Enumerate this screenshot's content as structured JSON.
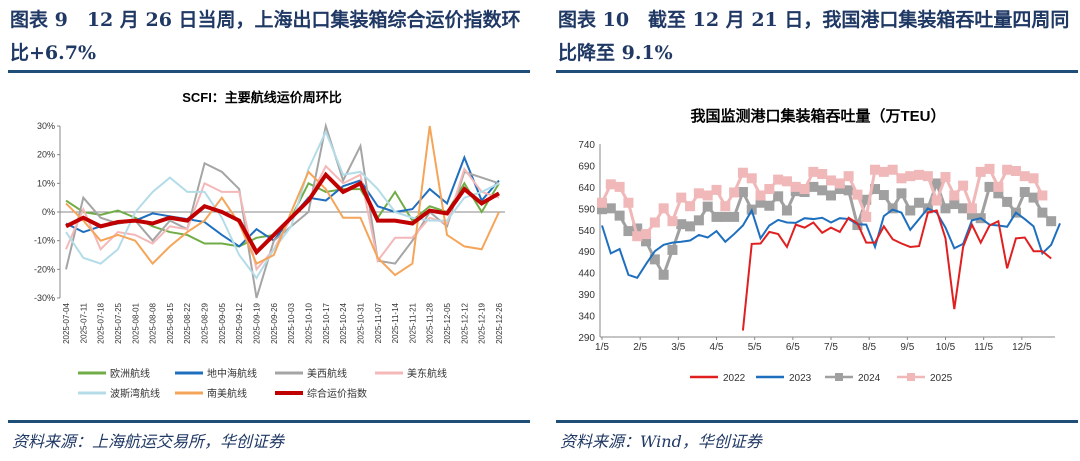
{
  "left": {
    "title": "图表 9　12 月 26 日当周，上海出口集装箱综合运价指数环比+6.7%",
    "source": "资料来源：上海航运交易所，华创证券"
  },
  "right": {
    "title": "图表 10　截至 12 月 21 日，我国港口集装箱吞吐量四周同比降至 9.1%",
    "source": "资料来源：Wind，华创证券"
  },
  "chart_data": [
    {
      "type": "line",
      "title": "SCFI：主要航线运价周环比",
      "ylim": [
        -30,
        30
      ],
      "yticks": [
        "-30%",
        "-20%",
        "-10%",
        "0%",
        "10%",
        "20%",
        "30%"
      ],
      "grid": false,
      "legend": "bottom",
      "categories": [
        "2025-07-04",
        "2025-07-11",
        "2025-07-18",
        "2025-07-25",
        "2025-08-01",
        "2025-08-08",
        "2025-08-15",
        "2025-08-22",
        "2025-08-29",
        "2025-09-05",
        "2025-09-12",
        "2025-09-19",
        "2025-09-26",
        "2025-10-03",
        "2025-10-10",
        "2025-10-17",
        "2025-10-24",
        "2025-10-31",
        "2025-11-07",
        "2025-11-14",
        "2025-11-21",
        "2025-11-28",
        "2025-12-05",
        "2025-12-12",
        "2025-12-19",
        "2025-12-26"
      ],
      "series": [
        {
          "name": "欧洲航线",
          "color": "#70ad47",
          "width": 2,
          "values": [
            4,
            0,
            -1,
            0.5,
            -2,
            -5,
            -7,
            -8,
            -11,
            -11,
            -12,
            -9,
            -8,
            -2,
            10,
            7,
            8,
            8,
            -2,
            7,
            -3,
            2,
            0,
            10,
            0,
            10
          ]
        },
        {
          "name": "地中海航线",
          "color": "#1f6fbf",
          "width": 2,
          "values": [
            -4,
            -7,
            -5,
            -4,
            -3,
            -0.5,
            -1.5,
            -2.5,
            -3.5,
            -8,
            -12,
            -6,
            -10,
            -2,
            5,
            4,
            9,
            11,
            2,
            0,
            1,
            8,
            3,
            19,
            4,
            11
          ]
        },
        {
          "name": "美西航线",
          "color": "#a5a5a5",
          "width": 2,
          "values": [
            -20,
            5,
            -2,
            -4,
            -3,
            -10,
            -3,
            -6,
            17,
            14,
            8,
            -30,
            -10,
            -5,
            0,
            30,
            11,
            23,
            -17,
            -18,
            -10,
            0,
            -5,
            14,
            12,
            10
          ]
        },
        {
          "name": "美东航线",
          "color": "#f4b8b8",
          "width": 2,
          "values": [
            -13,
            1,
            -13,
            -7,
            -8,
            -11,
            -5,
            -6,
            10,
            7,
            7,
            -20,
            -13,
            -2,
            4,
            16,
            10,
            13,
            -17,
            -9,
            -9,
            -2,
            -4,
            15,
            7,
            5
          ]
        },
        {
          "name": "波斯湾航线",
          "color": "#b4dce8",
          "width": 2,
          "values": [
            -7,
            -16,
            -18,
            -13,
            0,
            7,
            12,
            7,
            7,
            -2,
            -15,
            -23,
            -13,
            -5,
            15,
            28,
            13,
            14,
            8,
            0,
            -2,
            -3,
            -3,
            5,
            7,
            10
          ]
        },
        {
          "name": "南美航线",
          "color": "#f5a55a",
          "width": 2,
          "values": [
            3,
            -3,
            -10,
            -8,
            -10,
            -18,
            -12,
            -7,
            -3,
            5,
            -4,
            -18,
            -15,
            0,
            14,
            8,
            -2,
            -2,
            -16,
            -22,
            -18,
            30,
            -8,
            -12,
            -13,
            0
          ]
        },
        {
          "name": "综合运价指数",
          "color": "#c00000",
          "width": 4,
          "values": [
            -5,
            -2,
            -5,
            -3.5,
            -3,
            -4,
            -2,
            -3,
            2,
            0,
            -3,
            -14,
            -8,
            -2,
            4,
            13,
            7,
            10,
            -3,
            -3,
            -4,
            0.5,
            -0.5,
            8,
            3,
            6.5
          ]
        }
      ]
    },
    {
      "type": "line",
      "title": "我国监测港口集装箱吞吐量（万TEU）",
      "ylim": [
        290,
        740
      ],
      "yticks": [
        "290",
        "340",
        "390",
        "440",
        "490",
        "540",
        "590",
        "640",
        "690",
        "740"
      ],
      "grid": false,
      "legend": "bottom",
      "xticks": [
        "1/5",
        "2/5",
        "3/5",
        "4/5",
        "5/5",
        "6/5",
        "7/5",
        "8/5",
        "9/5",
        "10/5",
        "11/5",
        "12/5"
      ],
      "series": [
        {
          "name": "2022",
          "color": "#e02020",
          "marker": "none",
          "start_week": 16,
          "values": [
            305,
            507,
            508,
            535,
            530,
            500,
            552,
            545,
            557,
            533,
            545,
            535,
            568,
            555,
            510,
            510,
            548,
            518,
            508,
            500,
            502,
            580,
            585,
            520,
            355,
            500,
            552,
            510,
            550,
            560,
            450,
            520,
            522,
            490,
            490,
            473
          ]
        },
        {
          "name": "2023",
          "color": "#1f6fbf",
          "marker": "none",
          "start_week": 0,
          "values": [
            550,
            485,
            495,
            435,
            428,
            460,
            490,
            505,
            510,
            512,
            515,
            528,
            522,
            537,
            512,
            530,
            550,
            585,
            520,
            550,
            563,
            557,
            556,
            567,
            565,
            568,
            557,
            567,
            565,
            553,
            552,
            500,
            572,
            587,
            580,
            540,
            565,
            590,
            580,
            545,
            497,
            507,
            562,
            567,
            552,
            550,
            547,
            580,
            565,
            548,
            485,
            505,
            555
          ]
        },
        {
          "name": "2024",
          "color": "#a0a0a0",
          "marker": "square",
          "start_week": 0,
          "values": [
            588,
            590,
            573,
            537,
            543,
            513,
            471,
            435,
            493,
            553,
            548,
            562,
            594,
            570,
            570,
            570,
            628,
            587,
            603,
            596,
            618,
            585,
            630,
            628,
            640,
            632,
            620,
            635,
            632,
            551,
            610,
            635,
            621,
            590,
            625,
            585,
            603,
            590,
            648,
            590,
            600,
            590,
            575,
            567,
            640,
            625,
            605,
            580,
            628,
            615,
            580,
            560
          ]
        },
        {
          "name": "2025",
          "color": "#f0b8b8",
          "marker": "square",
          "start_week": 0,
          "values": [
            603,
            646,
            640,
            603,
            525,
            530,
            557,
            590,
            560,
            615,
            595,
            625,
            620,
            633,
            595,
            627,
            673,
            660,
            620,
            635,
            657,
            653,
            640,
            635,
            675,
            670,
            655,
            648,
            665,
            622,
            570,
            680,
            675,
            680,
            660,
            665,
            668,
            665,
            608,
            663,
            620,
            643,
            590,
            675,
            682,
            640,
            680,
            677,
            665,
            660,
            620
          ]
        }
      ]
    }
  ]
}
